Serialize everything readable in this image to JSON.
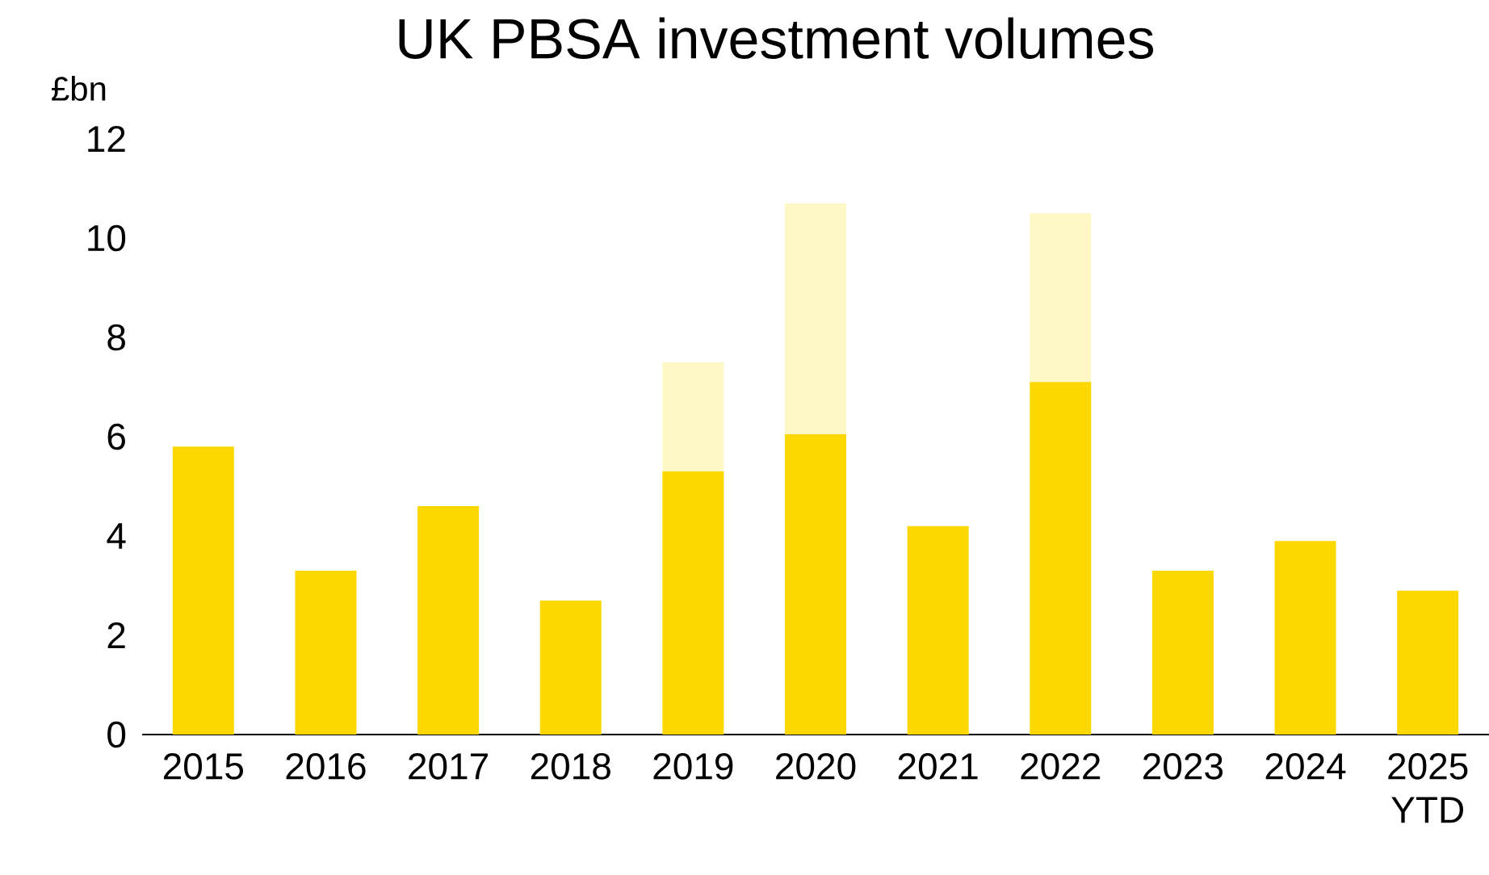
{
  "chart_data": {
    "type": "bar",
    "title": "UK PBSA investment volumes",
    "ylabel": "£bn",
    "stacked": true,
    "categories": [
      "2015",
      "2016",
      "2017",
      "2018",
      "2019",
      "2020",
      "2021",
      "2022",
      "2023",
      "2024",
      "2025 YTD"
    ],
    "series": [
      {
        "color": "#fdd800",
        "values": [
          5.8,
          3.3,
          4.6,
          2.7,
          5.3,
          6.05,
          4.2,
          7.1,
          3.3,
          3.9,
          2.9
        ]
      },
      {
        "color": "#fef7c6",
        "values": [
          0,
          0,
          0,
          0,
          2.2,
          4.65,
          0,
          3.4,
          0,
          0,
          0
        ]
      }
    ],
    "ylim": [
      0,
      12
    ],
    "yticks": [
      0,
      2,
      4,
      6,
      8,
      10,
      12
    ]
  }
}
